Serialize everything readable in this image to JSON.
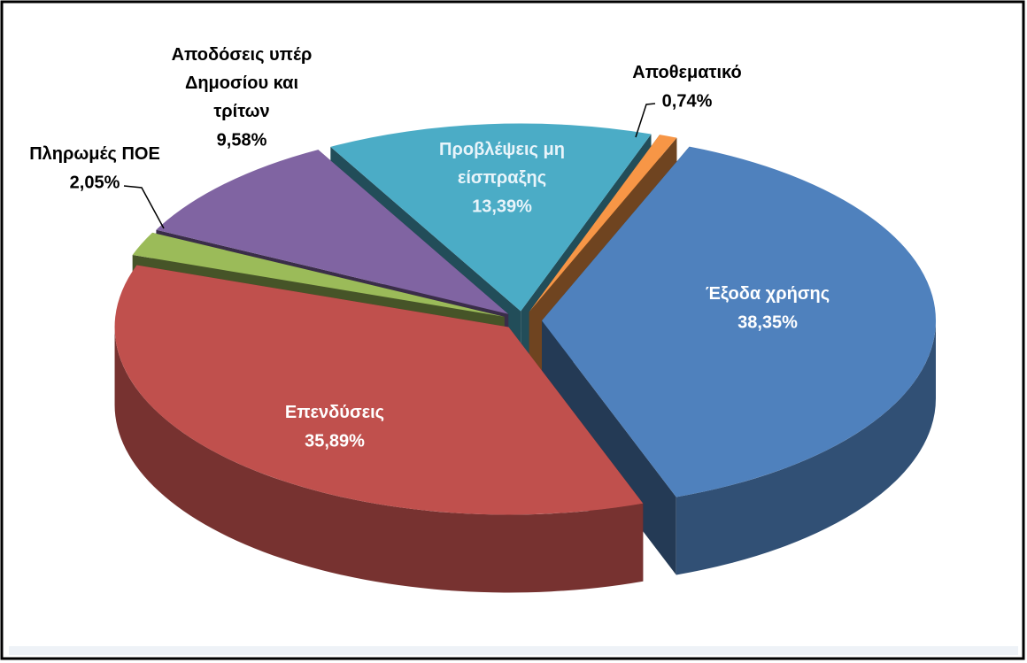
{
  "chart_data": {
    "type": "pie3d",
    "categories": [
      "Έξοδα χρήσης",
      "Επενδύσεις",
      "Πληρωμές ΠΟΕ",
      "Αποδόσεις υπέρ Δημοσίου και τρίτων",
      "Προβλέψεις μη είσπραξης",
      "Αποθεματικό"
    ],
    "values": [
      38.35,
      35.89,
      2.05,
      9.58,
      13.39,
      0.74
    ],
    "value_labels": [
      "38,35%",
      "35,89%",
      "2,05%",
      "9,58%",
      "13,39%",
      "0,74%"
    ],
    "colors": [
      "#4f81bd",
      "#c0504d",
      "#9bbb59",
      "#8064a2",
      "#4bacc6",
      "#f79646"
    ]
  }
}
